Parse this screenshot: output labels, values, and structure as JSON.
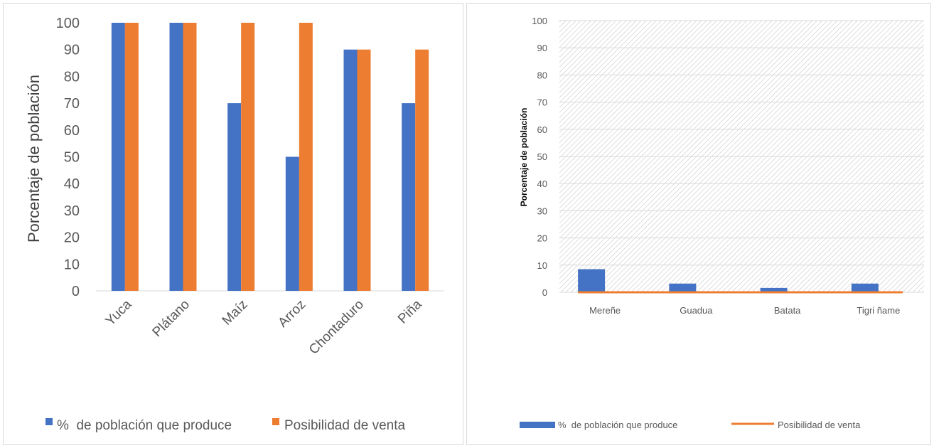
{
  "colors": {
    "blue": "#4472C4",
    "orange": "#ED7D31",
    "grid": "#d9d9d9",
    "text": "#595959"
  },
  "chart_data": [
    {
      "type": "bar",
      "categories": [
        "Yuca",
        "Plátano",
        "Maíz",
        "Arroz",
        "Chontaduro",
        "Piña"
      ],
      "series": [
        {
          "name": "%  de población que produce",
          "values": [
            100,
            100,
            70,
            50,
            90,
            70
          ]
        },
        {
          "name": "Posibilidad de venta",
          "values": [
            100,
            100,
            100,
            100,
            90,
            90
          ]
        }
      ],
      "ylabel": "Porcentaje de población",
      "yticks": [
        "0",
        "10",
        "20",
        "30",
        "40",
        "50",
        "60",
        "70",
        "80",
        "90",
        "100"
      ],
      "ylim": [
        0,
        100
      ],
      "grid": false,
      "legend": "bottom"
    },
    {
      "type": "bar+line",
      "categories": [
        "Mereñe",
        "Guadua",
        "Batata",
        "Tigri ñame"
      ],
      "series": [
        {
          "name": "%  de población que produce",
          "type": "bar",
          "values": [
            8.5,
            3.2,
            1.6,
            3.2
          ]
        },
        {
          "name": "Posibilidad de venta",
          "type": "line",
          "values": [
            0,
            0,
            0,
            0
          ]
        }
      ],
      "ylabel": "Porcentaje de población",
      "yticks": [
        "0",
        "10",
        "20",
        "30",
        "40",
        "50",
        "60",
        "70",
        "80",
        "90",
        "100"
      ],
      "ylim": [
        0,
        100
      ],
      "grid": true,
      "legend": "bottom"
    }
  ]
}
